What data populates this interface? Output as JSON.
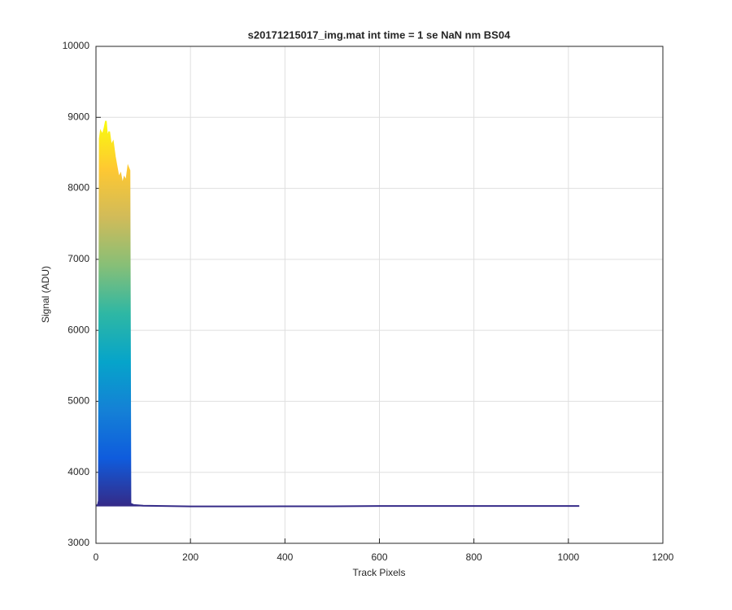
{
  "chart_data": {
    "type": "area",
    "title": "s20171215017_img.mat int time = 1 se  NaN nm BS04",
    "xlabel": "Track Pixels",
    "ylabel": "Signal (ADU)",
    "series": [
      {
        "x": [
          0,
          4,
          6,
          8,
          10,
          14,
          18,
          21,
          24,
          28,
          32,
          36,
          40,
          44,
          48,
          52,
          56,
          60,
          64,
          68,
          71,
          73,
          80,
          100,
          200,
          300,
          400,
          500,
          600,
          700,
          800,
          900,
          1000,
          1023
        ],
        "values": [
          3530,
          3540,
          3600,
          8700,
          8800,
          8750,
          8850,
          8950,
          8700,
          8800,
          8600,
          8650,
          8450,
          8300,
          8150,
          8200,
          8050,
          8150,
          8100,
          8300,
          8250,
          3560,
          3540,
          3530,
          3520,
          3520,
          3522,
          3522,
          3525,
          3525,
          3525,
          3525,
          3525,
          3525
        ]
      }
    ],
    "colormap": [
      "#352a87",
      "#0f5cdd",
      "#1481d6",
      "#06a4ca",
      "#2eb7a4",
      "#87bf77",
      "#d1bb59",
      "#fec832",
      "#f9fb0e"
    ],
    "xlim": [
      0,
      1200
    ],
    "xticks": [
      0,
      200,
      400,
      600,
      800,
      1000,
      1200
    ],
    "ylim": [
      3000,
      10000
    ],
    "yticks": [
      3000,
      4000,
      5000,
      6000,
      7000,
      8000,
      9000,
      10000
    ],
    "grid": true
  }
}
